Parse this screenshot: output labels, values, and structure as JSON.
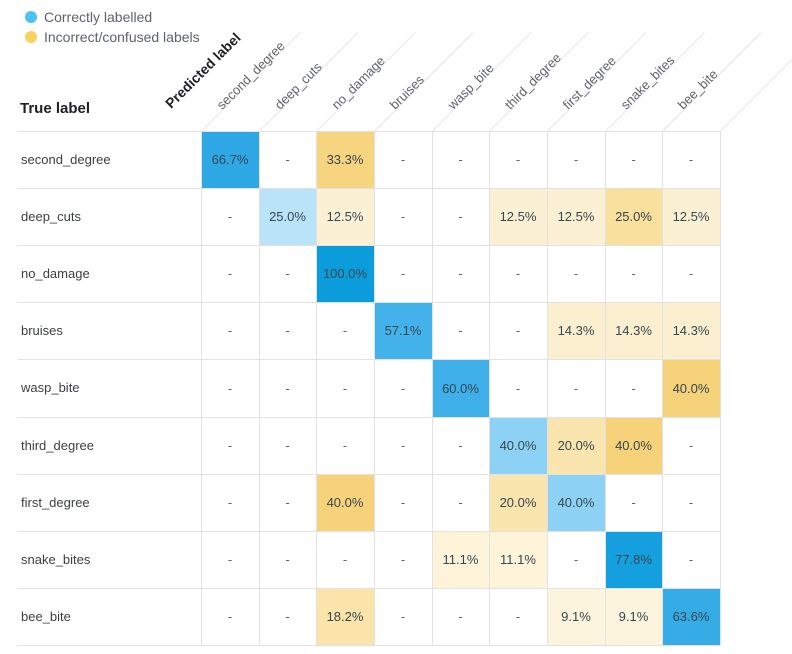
{
  "legend": {
    "items": [
      {
        "label": "Correctly labelled",
        "color": "#4EC0F2"
      },
      {
        "label": "Incorrect/confused labels",
        "color": "#F8D15F"
      }
    ]
  },
  "axes": {
    "true_axis": "True label",
    "predicted_axis": "Predicted label"
  },
  "empty_symbol": "-",
  "colors": {
    "grid_line": "#e2e2e2",
    "header_diag_line": "#e7e7e7",
    "value_text": "#37474f",
    "dash_text": "#5f6368",
    "correct": {
      "100.0": "#0b9cdb",
      "77.8": "#14a0de",
      "66.7": "#2ea8e5",
      "63.6": "#36ace7",
      "60.0": "#3eafe9",
      "57.1": "#44b2ea",
      "40.0": "#8dd2f4",
      "25.0": "#b8e3f8"
    },
    "incorrect": {
      "40.0": "#f6d27a",
      "33.3": "#f7d580",
      "25.0": "#f9e09d",
      "20.0": "#fae5af",
      "18.2": "#fae4a9",
      "14.3": "#fcefd0",
      "12.5": "#fcf0d4",
      "11.1": "#fdf3d9",
      "9.1": "#fdf4dd"
    }
  },
  "chart_data": {
    "type": "heatmap",
    "x_axis_label": "Predicted label",
    "y_axis_label": "True label",
    "unit": "%",
    "x_labels": [
      "second_degree",
      "deep_cuts",
      "no_damage",
      "bruises",
      "wasp_bite",
      "third_degree",
      "first_degree",
      "snake_bites",
      "bee_bite"
    ],
    "y_labels": [
      "second_degree",
      "deep_cuts",
      "no_damage",
      "bruises",
      "wasp_bite",
      "third_degree",
      "first_degree",
      "snake_bites",
      "bee_bite"
    ],
    "matrix": [
      [
        66.7,
        null,
        33.3,
        null,
        null,
        null,
        null,
        null,
        null
      ],
      [
        null,
        25.0,
        12.5,
        null,
        null,
        12.5,
        12.5,
        25.0,
        12.5
      ],
      [
        null,
        null,
        100.0,
        null,
        null,
        null,
        null,
        null,
        null
      ],
      [
        null,
        null,
        null,
        57.1,
        null,
        null,
        14.3,
        14.3,
        14.3
      ],
      [
        null,
        null,
        null,
        null,
        60.0,
        null,
        null,
        null,
        40.0
      ],
      [
        null,
        null,
        null,
        null,
        null,
        40.0,
        20.0,
        40.0,
        null
      ],
      [
        null,
        null,
        40.0,
        null,
        null,
        20.0,
        40.0,
        null,
        null
      ],
      [
        null,
        null,
        null,
        null,
        11.1,
        11.1,
        null,
        77.8,
        null
      ],
      [
        null,
        null,
        18.2,
        null,
        null,
        null,
        9.1,
        9.1,
        63.6
      ]
    ]
  }
}
